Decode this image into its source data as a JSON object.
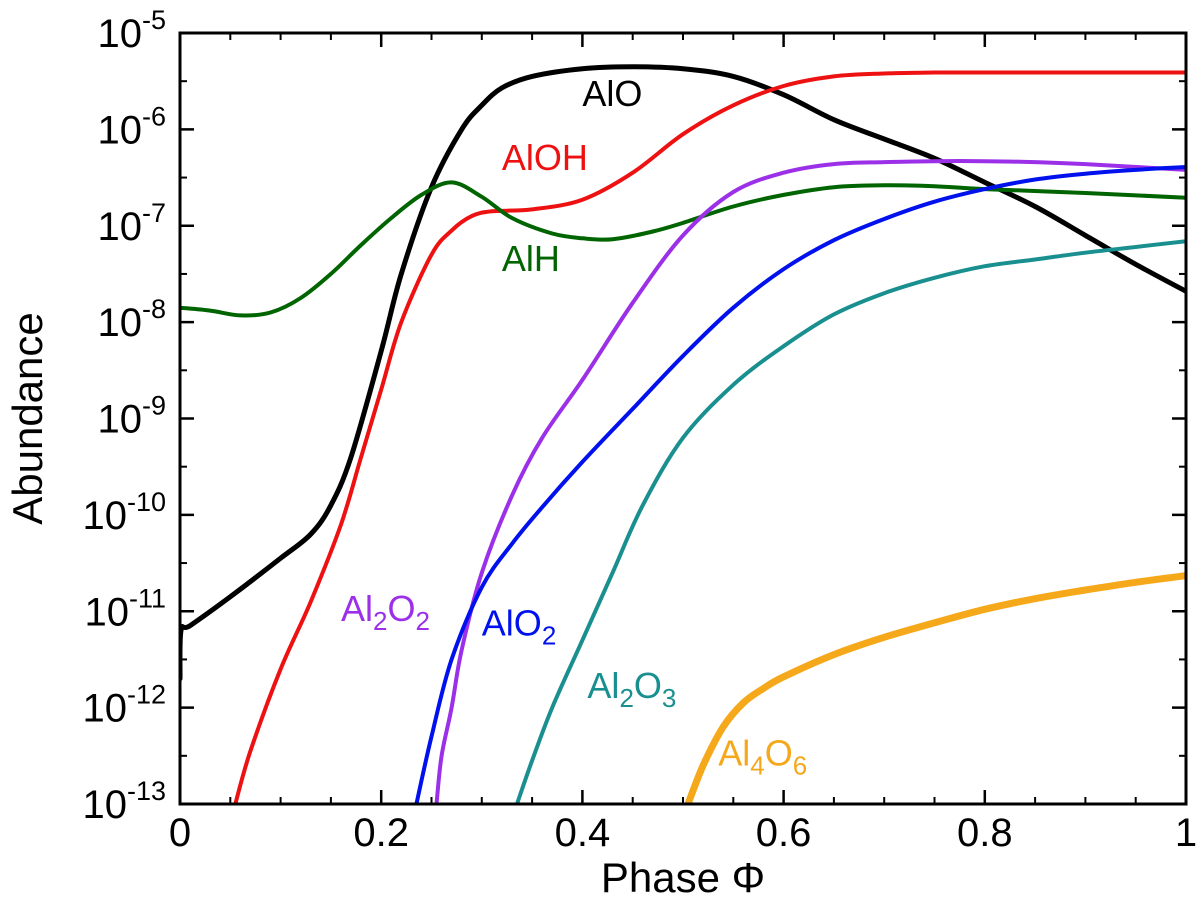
{
  "chart_data": {
    "type": "line",
    "title": "",
    "xlabel": "Phase Φ",
    "ylabel": "Abundance",
    "xlim": [
      0,
      1
    ],
    "ylim_log10": [
      -13,
      -5
    ],
    "yscale": "log",
    "x_ticks": [
      {
        "value": 0,
        "label": "0"
      },
      {
        "value": 0.2,
        "label": "0.2"
      },
      {
        "value": 0.4,
        "label": "0.4"
      },
      {
        "value": 0.6,
        "label": "0.6"
      },
      {
        "value": 0.8,
        "label": "0.8"
      },
      {
        "value": 1,
        "label": "1"
      }
    ],
    "y_ticks": [
      {
        "exp": -5,
        "base": "10",
        "sup": "-5"
      },
      {
        "exp": -6,
        "base": "10",
        "sup": "-6"
      },
      {
        "exp": -7,
        "base": "10",
        "sup": "-7"
      },
      {
        "exp": -8,
        "base": "10",
        "sup": "-8"
      },
      {
        "exp": -9,
        "base": "10",
        "sup": "-9"
      },
      {
        "exp": -10,
        "base": "10",
        "sup": "-10"
      },
      {
        "exp": -11,
        "base": "10",
        "sup": "-11"
      },
      {
        "exp": -12,
        "base": "10",
        "sup": "-12"
      },
      {
        "exp": -13,
        "base": "10",
        "sup": "-13"
      }
    ],
    "grid": false,
    "series": [
      {
        "name": "AlO",
        "key": "alo",
        "color": "#000000",
        "width": 5,
        "label_parts": [
          {
            "t": "AlO",
            "sub": false
          }
        ],
        "label_at": {
          "x": 0.4,
          "log10": -5.76
        },
        "x": [
          0,
          0.001,
          0.01,
          0.05,
          0.1,
          0.13,
          0.15,
          0.17,
          0.2,
          0.22,
          0.25,
          0.28,
          0.3,
          0.32,
          0.35,
          0.4,
          0.45,
          0.5,
          0.55,
          0.6,
          0.65,
          0.7,
          0.75,
          0.8,
          0.85,
          0.9,
          0.95,
          1.0
        ],
        "log10": [
          -11.7,
          -11.2,
          -11.15,
          -10.85,
          -10.45,
          -10.2,
          -9.9,
          -9.4,
          -8.3,
          -7.5,
          -6.6,
          -6.0,
          -5.75,
          -5.57,
          -5.45,
          -5.37,
          -5.35,
          -5.37,
          -5.45,
          -5.64,
          -5.9,
          -6.1,
          -6.3,
          -6.55,
          -6.8,
          -7.1,
          -7.4,
          -7.68
        ]
      },
      {
        "name": "AlOH",
        "key": "aloh",
        "color": "#ee1111",
        "width": 4,
        "label_parts": [
          {
            "t": "AlOH",
            "sub": false
          }
        ],
        "label_at": {
          "x": 0.32,
          "log10": -6.42
        },
        "x": [
          0.055,
          0.07,
          0.1,
          0.13,
          0.16,
          0.18,
          0.2,
          0.22,
          0.25,
          0.27,
          0.29,
          0.31,
          0.35,
          0.4,
          0.45,
          0.5,
          0.55,
          0.6,
          0.65,
          0.7,
          0.75,
          0.8,
          0.9,
          1.0
        ],
        "log10": [
          -13.0,
          -12.45,
          -11.6,
          -10.9,
          -10.1,
          -9.4,
          -8.7,
          -8.0,
          -7.3,
          -7.05,
          -6.9,
          -6.85,
          -6.83,
          -6.73,
          -6.45,
          -6.05,
          -5.75,
          -5.55,
          -5.45,
          -5.42,
          -5.41,
          -5.41,
          -5.41,
          -5.41
        ]
      },
      {
        "name": "AlH",
        "key": "alh",
        "color": "#006400",
        "width": 4,
        "label_parts": [
          {
            "t": "AlH",
            "sub": false
          }
        ],
        "label_at": {
          "x": 0.32,
          "log10": -7.47
        },
        "x": [
          0,
          0.03,
          0.06,
          0.09,
          0.12,
          0.15,
          0.18,
          0.21,
          0.24,
          0.27,
          0.3,
          0.33,
          0.37,
          0.4,
          0.43,
          0.47,
          0.5,
          0.55,
          0.6,
          0.65,
          0.7,
          0.75,
          0.8,
          0.9,
          1.0
        ],
        "log10": [
          -7.85,
          -7.88,
          -7.93,
          -7.9,
          -7.75,
          -7.5,
          -7.2,
          -6.92,
          -6.68,
          -6.55,
          -6.7,
          -6.92,
          -7.08,
          -7.13,
          -7.14,
          -7.06,
          -6.97,
          -6.8,
          -6.68,
          -6.6,
          -6.58,
          -6.59,
          -6.62,
          -6.66,
          -6.71
        ]
      },
      {
        "name": "Al2O2",
        "key": "al2o2",
        "color": "#9b30e8",
        "width": 4,
        "label_parts": [
          {
            "t": "Al",
            "sub": false
          },
          {
            "t": "2",
            "sub": true
          },
          {
            "t": "O",
            "sub": false
          },
          {
            "t": "2",
            "sub": true
          }
        ],
        "label_at": {
          "x": 0.16,
          "log10": -11.1
        },
        "x": [
          0.255,
          0.26,
          0.27,
          0.28,
          0.3,
          0.33,
          0.36,
          0.4,
          0.45,
          0.5,
          0.55,
          0.6,
          0.65,
          0.7,
          0.75,
          0.8,
          0.85,
          0.9,
          1.0
        ],
        "log10": [
          -13.0,
          -12.5,
          -12.0,
          -11.4,
          -10.6,
          -9.8,
          -9.2,
          -8.6,
          -7.8,
          -7.1,
          -6.65,
          -6.45,
          -6.36,
          -6.34,
          -6.33,
          -6.33,
          -6.34,
          -6.36,
          -6.42
        ]
      },
      {
        "name": "AlO2",
        "key": "alo2",
        "color": "#0011ee",
        "width": 4,
        "label_parts": [
          {
            "t": "AlO",
            "sub": false
          },
          {
            "t": "2",
            "sub": true
          }
        ],
        "label_at": {
          "x": 0.3,
          "log10": -11.25
        },
        "x": [
          0.235,
          0.25,
          0.27,
          0.3,
          0.33,
          0.36,
          0.4,
          0.45,
          0.5,
          0.55,
          0.6,
          0.65,
          0.7,
          0.75,
          0.8,
          0.85,
          0.9,
          0.95,
          1.0
        ],
        "log10": [
          -13.0,
          -12.3,
          -11.5,
          -10.75,
          -10.3,
          -9.92,
          -9.45,
          -8.9,
          -8.35,
          -7.85,
          -7.45,
          -7.15,
          -6.93,
          -6.75,
          -6.62,
          -6.52,
          -6.46,
          -6.42,
          -6.39
        ]
      },
      {
        "name": "Al2O3",
        "key": "al2o3",
        "color": "#1a8f8f",
        "width": 4,
        "label_parts": [
          {
            "t": "Al",
            "sub": false
          },
          {
            "t": "2",
            "sub": true
          },
          {
            "t": "O",
            "sub": false
          },
          {
            "t": "3",
            "sub": true
          }
        ],
        "label_at": {
          "x": 0.405,
          "log10": -11.9
        },
        "x": [
          0.335,
          0.35,
          0.37,
          0.4,
          0.43,
          0.46,
          0.5,
          0.55,
          0.6,
          0.65,
          0.7,
          0.75,
          0.8,
          0.85,
          0.9,
          0.95,
          1.0
        ],
        "log10": [
          -13.0,
          -12.55,
          -12.0,
          -11.3,
          -10.6,
          -9.9,
          -9.2,
          -8.65,
          -8.25,
          -7.92,
          -7.7,
          -7.54,
          -7.42,
          -7.35,
          -7.28,
          -7.22,
          -7.16
        ]
      },
      {
        "name": "Al4O6",
        "key": "al4o6",
        "color": "#f6a81b",
        "width": 7,
        "label_parts": [
          {
            "t": "Al",
            "sub": false
          },
          {
            "t": "4",
            "sub": true
          },
          {
            "t": "O",
            "sub": false
          },
          {
            "t": "6",
            "sub": true
          }
        ],
        "label_at": {
          "x": 0.535,
          "log10": -12.6
        },
        "x": [
          0.505,
          0.52,
          0.54,
          0.56,
          0.58,
          0.6,
          0.65,
          0.7,
          0.75,
          0.8,
          0.85,
          0.9,
          0.95,
          1.0
        ],
        "log10": [
          -13.0,
          -12.6,
          -12.2,
          -11.95,
          -11.8,
          -11.68,
          -11.45,
          -11.27,
          -11.12,
          -10.98,
          -10.87,
          -10.78,
          -10.7,
          -10.63
        ]
      }
    ]
  }
}
